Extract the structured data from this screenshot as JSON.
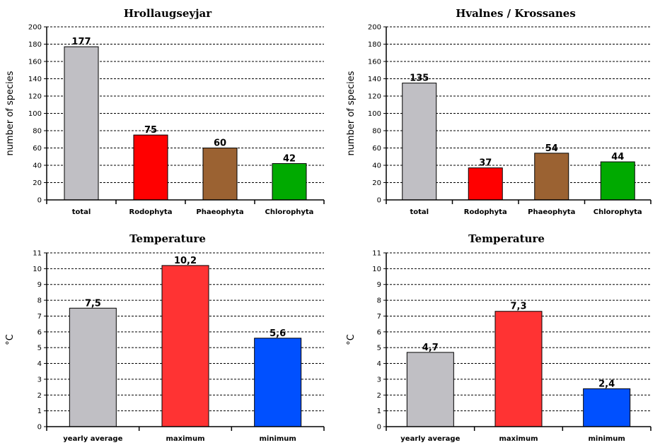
{
  "chart_data": [
    {
      "type": "bar",
      "title": "Hrollaugseyjar",
      "ylabel": "number of species",
      "xlabel": "",
      "ylim": [
        0,
        200
      ],
      "ytick_step": 20,
      "grid": true,
      "categories": [
        "total",
        "Rodophyta",
        "Phaeophyta",
        "Chlorophyta"
      ],
      "values": [
        177,
        75,
        60,
        42
      ],
      "value_labels": [
        "177",
        "75",
        "60",
        "42"
      ],
      "colors": [
        "#c0bfc4",
        "#ff0000",
        "#9b6232",
        "#00aa00"
      ]
    },
    {
      "type": "bar",
      "title": "Hvalnes / Krossanes",
      "ylabel": "number of species",
      "xlabel": "",
      "ylim": [
        0,
        200
      ],
      "ytick_step": 20,
      "grid": true,
      "categories": [
        "total",
        "Rodophyta",
        "Phaeophyta",
        "Chlorophyta"
      ],
      "values": [
        135,
        37,
        54,
        44
      ],
      "value_labels": [
        "135",
        "37",
        "54",
        "44"
      ],
      "colors": [
        "#c0bfc4",
        "#ff0000",
        "#9b6232",
        "#00aa00"
      ]
    },
    {
      "type": "bar",
      "title": "Temperature",
      "ylabel": "°C",
      "xlabel": "",
      "ylim": [
        0,
        11
      ],
      "ytick_step": 1,
      "grid": true,
      "categories": [
        "yearly average",
        "maximum",
        "minimum"
      ],
      "values": [
        7.5,
        10.2,
        5.6
      ],
      "value_labels": [
        "7,5",
        "10,2",
        "5,6"
      ],
      "colors": [
        "#c0bfc4",
        "#ff3333",
        "#0050ff"
      ]
    },
    {
      "type": "bar",
      "title": "Temperature",
      "ylabel": "°C",
      "xlabel": "",
      "ylim": [
        0,
        11
      ],
      "ytick_step": 1,
      "grid": true,
      "categories": [
        "yearly average",
        "maximum",
        "minimum"
      ],
      "values": [
        4.7,
        7.3,
        2.4
      ],
      "value_labels": [
        "4,7",
        "7,3",
        "2,4"
      ],
      "colors": [
        "#c0bfc4",
        "#ff3333",
        "#0050ff"
      ]
    }
  ]
}
